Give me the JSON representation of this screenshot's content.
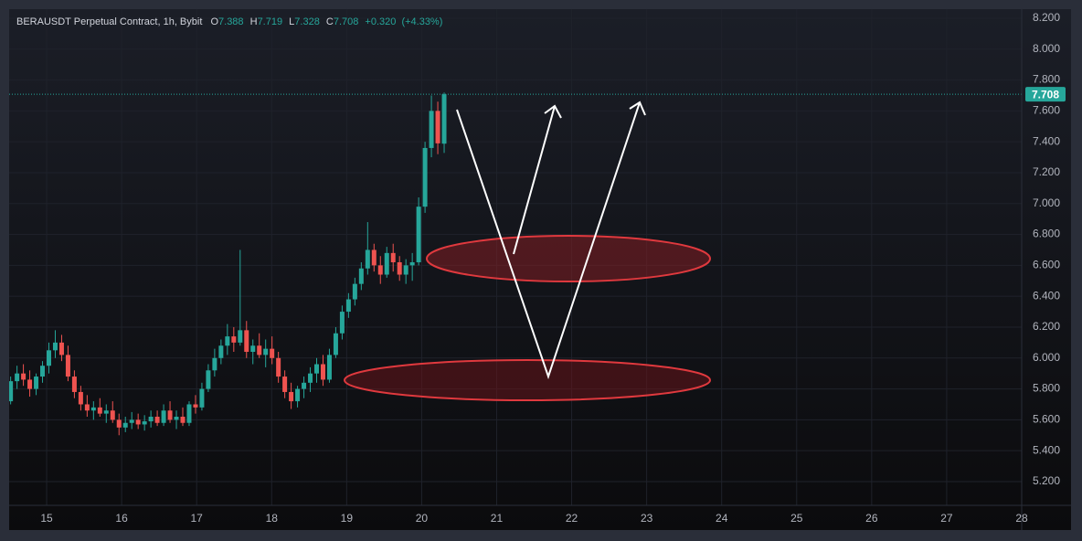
{
  "chart_data": {
    "type": "candlestick",
    "title": "BERAUSDT Perpetual Contract, 1h, Bybit",
    "legend": {
      "o_label": "O",
      "o": 7.388,
      "h_label": "H",
      "h": 7.719,
      "l_label": "L",
      "l": 7.328,
      "c_label": "C",
      "c": 7.708,
      "change": "+0.320",
      "change_pct": "(+4.33%)"
    },
    "last_price": 7.708,
    "up_color": "#26a69a",
    "down_color": "#ef5350",
    "grid": true,
    "x": [
      14.52,
      14.605,
      14.69,
      14.775,
      14.86,
      14.945,
      15.03,
      15.115,
      15.2,
      15.285,
      15.37,
      15.455,
      15.54,
      15.625,
      15.71,
      15.795,
      15.88,
      15.965,
      16.05,
      16.135,
      16.22,
      16.305,
      16.39,
      16.475,
      16.56,
      16.645,
      16.73,
      16.815,
      16.9,
      16.985,
      17.07,
      17.155,
      17.24,
      17.325,
      17.41,
      17.495,
      17.58,
      17.665,
      17.75,
      17.835,
      17.92,
      18.005,
      18.09,
      18.175,
      18.26,
      18.345,
      18.43,
      18.515,
      18.6,
      18.685,
      18.77,
      18.855,
      18.94,
      19.025,
      19.11,
      19.195,
      19.28,
      19.365,
      19.45,
      19.535,
      19.62,
      19.705,
      19.79,
      19.875,
      19.96,
      20.045,
      20.13,
      20.215,
      20.3
    ],
    "open": [
      5.72,
      5.85,
      5.9,
      5.86,
      5.8,
      5.88,
      5.95,
      6.05,
      6.1,
      6.02,
      5.88,
      5.78,
      5.7,
      5.66,
      5.68,
      5.64,
      5.66,
      5.6,
      5.55,
      5.58,
      5.6,
      5.57,
      5.59,
      5.62,
      5.58,
      5.66,
      5.6,
      5.62,
      5.58,
      5.7,
      5.68,
      5.8,
      5.92,
      6.0,
      6.08,
      6.14,
      6.1,
      6.18,
      6.04,
      6.08,
      6.02,
      6.06,
      6.0,
      5.88,
      5.78,
      5.72,
      5.8,
      5.84,
      5.9,
      5.96,
      5.86,
      6.02,
      6.16,
      6.3,
      6.38,
      6.48,
      6.58,
      6.7,
      6.6,
      6.54,
      6.68,
      6.62,
      6.54,
      6.6,
      6.62,
      6.98,
      7.36,
      7.6,
      7.388
    ],
    "high": [
      5.88,
      5.95,
      5.96,
      5.92,
      5.9,
      5.98,
      6.1,
      6.18,
      6.15,
      6.08,
      5.92,
      5.82,
      5.76,
      5.72,
      5.74,
      5.7,
      5.72,
      5.64,
      5.62,
      5.65,
      5.64,
      5.63,
      5.66,
      5.66,
      5.7,
      5.72,
      5.66,
      5.68,
      5.72,
      5.76,
      5.84,
      5.96,
      6.06,
      6.12,
      6.22,
      6.2,
      6.7,
      6.24,
      6.12,
      6.16,
      6.12,
      6.14,
      6.04,
      5.92,
      5.84,
      5.82,
      5.88,
      5.94,
      6.0,
      6.02,
      6.06,
      6.2,
      6.34,
      6.42,
      6.52,
      6.62,
      6.88,
      6.74,
      6.66,
      6.72,
      6.74,
      6.66,
      6.64,
      6.68,
      7.04,
      7.4,
      7.7,
      7.66,
      7.719
    ],
    "low": [
      5.7,
      5.8,
      5.82,
      5.75,
      5.76,
      5.84,
      5.9,
      6.0,
      5.98,
      5.85,
      5.74,
      5.66,
      5.62,
      5.6,
      5.62,
      5.58,
      5.58,
      5.5,
      5.52,
      5.54,
      5.54,
      5.53,
      5.55,
      5.56,
      5.56,
      5.58,
      5.54,
      5.56,
      5.56,
      5.64,
      5.66,
      5.78,
      5.88,
      5.96,
      6.02,
      6.04,
      6.08,
      6.0,
      5.96,
      6.0,
      5.94,
      5.96,
      5.84,
      5.74,
      5.67,
      5.68,
      5.74,
      5.78,
      5.84,
      5.82,
      5.84,
      6.0,
      6.12,
      6.26,
      6.34,
      6.44,
      6.54,
      6.56,
      6.48,
      6.52,
      6.56,
      6.5,
      6.48,
      6.5,
      6.6,
      6.94,
      7.3,
      7.32,
      7.328
    ],
    "close": [
      5.85,
      5.9,
      5.86,
      5.8,
      5.88,
      5.95,
      6.05,
      6.1,
      6.02,
      5.88,
      5.78,
      5.7,
      5.66,
      5.68,
      5.64,
      5.66,
      5.6,
      5.55,
      5.58,
      5.6,
      5.57,
      5.59,
      5.62,
      5.58,
      5.66,
      5.6,
      5.62,
      5.58,
      5.7,
      5.68,
      5.8,
      5.92,
      6.0,
      6.08,
      6.14,
      6.1,
      6.18,
      6.04,
      6.08,
      6.02,
      6.06,
      6.0,
      5.88,
      5.78,
      5.72,
      5.8,
      5.84,
      5.9,
      5.96,
      5.86,
      6.02,
      6.16,
      6.3,
      6.38,
      6.48,
      6.58,
      6.7,
      6.6,
      6.54,
      6.68,
      6.62,
      6.54,
      6.6,
      6.62,
      6.98,
      7.36,
      7.6,
      7.39,
      7.708
    ],
    "xlim": [
      14.5,
      28.0
    ],
    "xticks": [
      15,
      16,
      17,
      18,
      19,
      20,
      21,
      22,
      23,
      24,
      25,
      26,
      27,
      28
    ],
    "ylim": [
      5.046,
      8.259
    ],
    "yticks": [
      {
        "value": 5.2,
        "label": "5.200"
      },
      {
        "value": 5.4,
        "label": "5.400"
      },
      {
        "value": 5.6,
        "label": "5.600"
      },
      {
        "value": 5.8,
        "label": "5.800"
      },
      {
        "value": 6.0,
        "label": "6.000"
      },
      {
        "value": 6.2,
        "label": "6.200"
      },
      {
        "value": 6.4,
        "label": "6.400"
      },
      {
        "value": 6.6,
        "label": "6.600"
      },
      {
        "value": 6.8,
        "label": "6.800"
      },
      {
        "value": 7.0,
        "label": "7.000"
      },
      {
        "value": 7.2,
        "label": "7.200"
      },
      {
        "value": 7.4,
        "label": "7.400"
      },
      {
        "value": 7.6,
        "label": "7.600"
      },
      {
        "value": 7.8,
        "label": "7.800"
      },
      {
        "value": 8.0,
        "label": "8.000"
      },
      {
        "value": 8.2,
        "label": "8.200"
      }
    ]
  }
}
